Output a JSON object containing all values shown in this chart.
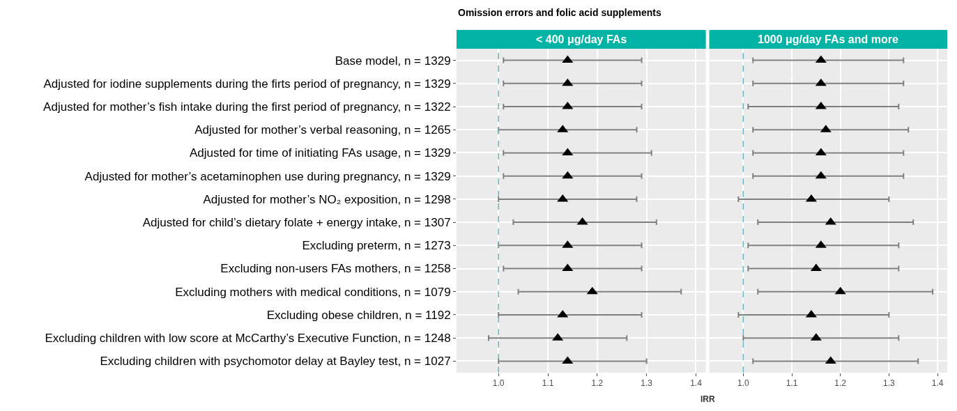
{
  "chart_data": [
    {
      "type": "scatter",
      "orientation": "horizontal",
      "title": "Omission errors and folic acid supplements",
      "subtitle": "< 400 μg/day FAs",
      "xlabel": "IRR",
      "categories": [
        "Base model, n = 1329",
        "Adjusted for iodine supplements during the firts period of pregnancy, n = 1329",
        "Adjusted for mother’s fish intake during the first period of pregnancy, n = 1322",
        "Adjusted for mother’s verbal reasoning, n = 1265",
        "Adjusted for time of initiating FAs usage, n = 1329",
        "Adjusted for mother’s acetaminophen use during pregnancy, n = 1329",
        "Adjusted for mother’s NO₂ exposition, n = 1298",
        "Adjusted for child’s dietary folate + energy intake, n = 1307",
        "Excluding preterm, n = 1273",
        "Excluding non-users FAs mothers, n = 1258",
        "Excluding mothers with medical conditions, n = 1079",
        "Excluding obese children, n = 1192",
        "Excluding children with low score at McCarthy’s Executive Function, n = 1248",
        "Excluding children with psychomotor delay at Bayley test, n = 1027"
      ],
      "series": [
        {
          "color": "#000000",
          "values": [
            1.14,
            1.14,
            1.14,
            1.13,
            1.14,
            1.14,
            1.13,
            1.17,
            1.14,
            1.14,
            1.19,
            1.13,
            1.12,
            1.14
          ],
          "errors": [
            [
              1.01,
              1.29
            ],
            [
              1.01,
              1.29
            ],
            [
              1.01,
              1.29
            ],
            [
              1.0,
              1.28
            ],
            [
              1.01,
              1.31
            ],
            [
              1.01,
              1.29
            ],
            [
              1.0,
              1.28
            ],
            [
              1.03,
              1.32
            ],
            [
              1.0,
              1.29
            ],
            [
              1.01,
              1.29
            ],
            [
              1.04,
              1.37
            ],
            [
              1.0,
              1.29
            ],
            [
              0.98,
              1.26
            ],
            [
              1.0,
              1.3
            ]
          ]
        }
      ],
      "marker": "triangle",
      "xlim": [
        0.915,
        1.42
      ],
      "xticks": [
        {
          "value": 1.0,
          "label": "1.0"
        },
        1.1,
        1.2,
        1.3,
        1.4
      ],
      "ref_lines": [
        {
          "axis": "x",
          "value": 1.0,
          "color": "#66b3c2",
          "line_style": "dashed"
        }
      ],
      "grid": true
    },
    {
      "type": "scatter",
      "orientation": "horizontal",
      "subtitle": "1000 μg/day FAs and more",
      "categories": [
        "Base model, n = 1329",
        "Adjusted for iodine supplements during the firts period of pregnancy, n = 1329",
        "Adjusted for mother’s fish intake during the first period of pregnancy, n = 1322",
        "Adjusted for mother’s verbal reasoning, n = 1265",
        "Adjusted for time of initiating FAs usage, n = 1329",
        "Adjusted for mother’s acetaminophen use during pregnancy, n = 1329",
        "Adjusted for mother’s NO₂ exposition, n = 1298",
        "Adjusted for child’s dietary folate + energy intake, n = 1307",
        "Excluding preterm, n = 1273",
        "Excluding non-users FAs mothers, n = 1258",
        "Excluding mothers with medical conditions, n = 1079",
        "Excluding obese children, n = 1192",
        "Excluding children with low score at McCarthy’s Executive Function, n = 1248",
        "Excluding children with psychomotor delay at Bayley test, n = 1027"
      ],
      "series": [
        {
          "color": "#000000",
          "values": [
            1.16,
            1.16,
            1.16,
            1.17,
            1.16,
            1.16,
            1.14,
            1.18,
            1.16,
            1.15,
            1.2,
            1.14,
            1.15,
            1.18
          ],
          "errors": [
            [
              1.02,
              1.33
            ],
            [
              1.02,
              1.33
            ],
            [
              1.01,
              1.32
            ],
            [
              1.02,
              1.34
            ],
            [
              1.02,
              1.33
            ],
            [
              1.02,
              1.33
            ],
            [
              0.99,
              1.3
            ],
            [
              1.03,
              1.35
            ],
            [
              1.01,
              1.32
            ],
            [
              1.01,
              1.32
            ],
            [
              1.03,
              1.39
            ],
            [
              0.99,
              1.3
            ],
            [
              1.0,
              1.32
            ],
            [
              1.02,
              1.36
            ]
          ]
        }
      ],
      "marker": "triangle",
      "xlim": [
        0.93,
        1.42
      ],
      "xticks": [
        {
          "value": 1.0,
          "label": "1.0"
        },
        1.1,
        1.2,
        1.3,
        1.4
      ],
      "ref_lines": [
        {
          "axis": "x",
          "value": 1.0,
          "color": "#66b3c2",
          "line_style": "dashed"
        }
      ],
      "grid": true,
      "tick_labels": "x"
    }
  ]
}
